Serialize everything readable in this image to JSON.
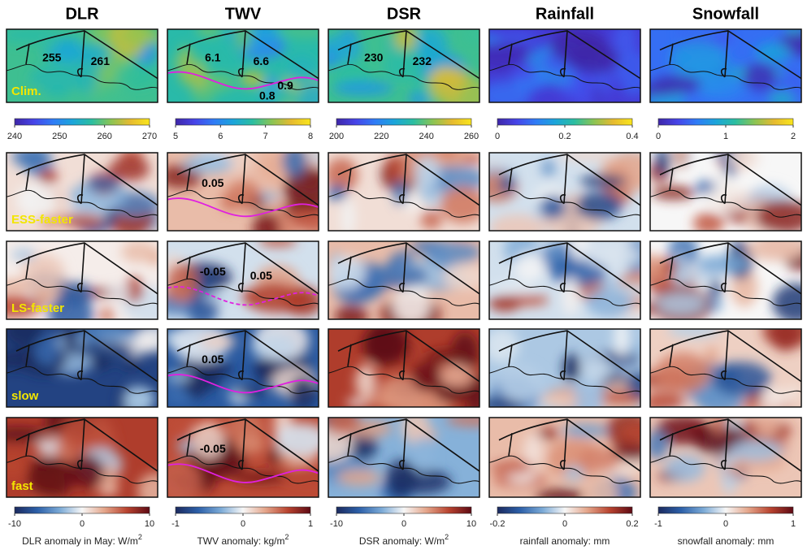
{
  "columns": [
    "DLR",
    "TWV",
    "DSR",
    "Rainfall",
    "Snowfall"
  ],
  "rows": [
    "Clim.",
    "ESS-faster",
    "LS-faster",
    "slow",
    "fast"
  ],
  "map_labels": [
    [
      [
        "255",
        "261"
      ],
      [
        "6.1",
        "6.6",
        "0.9",
        "0.8"
      ],
      [
        "230",
        "232"
      ]
    ],
    [
      null,
      [
        "0.05"
      ]
    ],
    [
      null,
      [
        "-0.05",
        "0.05"
      ]
    ],
    [
      null,
      [
        "0.05"
      ]
    ],
    [
      null,
      [
        "-0.05"
      ]
    ]
  ],
  "colormaps": {
    "climatology": [
      "#3e26a8",
      "#4744e8",
      "#2f7cf6",
      "#1ba5da",
      "#2bbea0",
      "#8ac454",
      "#e6ba30",
      "#f9e51b"
    ],
    "anomaly": [
      "#1b2a5e",
      "#2c5fa8",
      "#7aa9d6",
      "#f7f7f7",
      "#e4a58a",
      "#b8432f",
      "#5e0a14"
    ]
  },
  "colorbars_top": [
    {
      "lim": [
        240,
        270
      ],
      "ticks": [
        240,
        250,
        260,
        270
      ]
    },
    {
      "lim": [
        5,
        8
      ],
      "ticks": [
        5,
        6,
        7,
        8
      ]
    },
    {
      "lim": [
        200,
        260
      ],
      "ticks": [
        200,
        220,
        240,
        260
      ]
    },
    {
      "lim": [
        0,
        0.4
      ],
      "ticks": [
        0,
        0.2,
        0.4
      ]
    },
    {
      "lim": [
        0,
        2
      ],
      "ticks": [
        0,
        1,
        2
      ]
    }
  ],
  "colorbars_bottom": [
    {
      "lim": [
        -10,
        10
      ],
      "ticks": [
        -10,
        0,
        10
      ],
      "label": "DLR anomaly in May: W/m",
      "label_sup": "2"
    },
    {
      "lim": [
        -1,
        1
      ],
      "ticks": [
        -1,
        0,
        1
      ],
      "label": "TWV anomaly: kg/m",
      "label_sup": "2"
    },
    {
      "lim": [
        -10,
        10
      ],
      "ticks": [
        -10,
        0,
        10
      ],
      "label": "DSR anomaly: W/m",
      "label_sup": "2"
    },
    {
      "lim": [
        -0.2,
        0.2
      ],
      "ticks": [
        -0.2,
        0,
        0.2
      ],
      "label": "rainfall anomaly: mm"
    },
    {
      "lim": [
        -1,
        1
      ],
      "ticks": [
        -1,
        0,
        1
      ],
      "label": "snowfall anomaly: mm"
    }
  ]
}
